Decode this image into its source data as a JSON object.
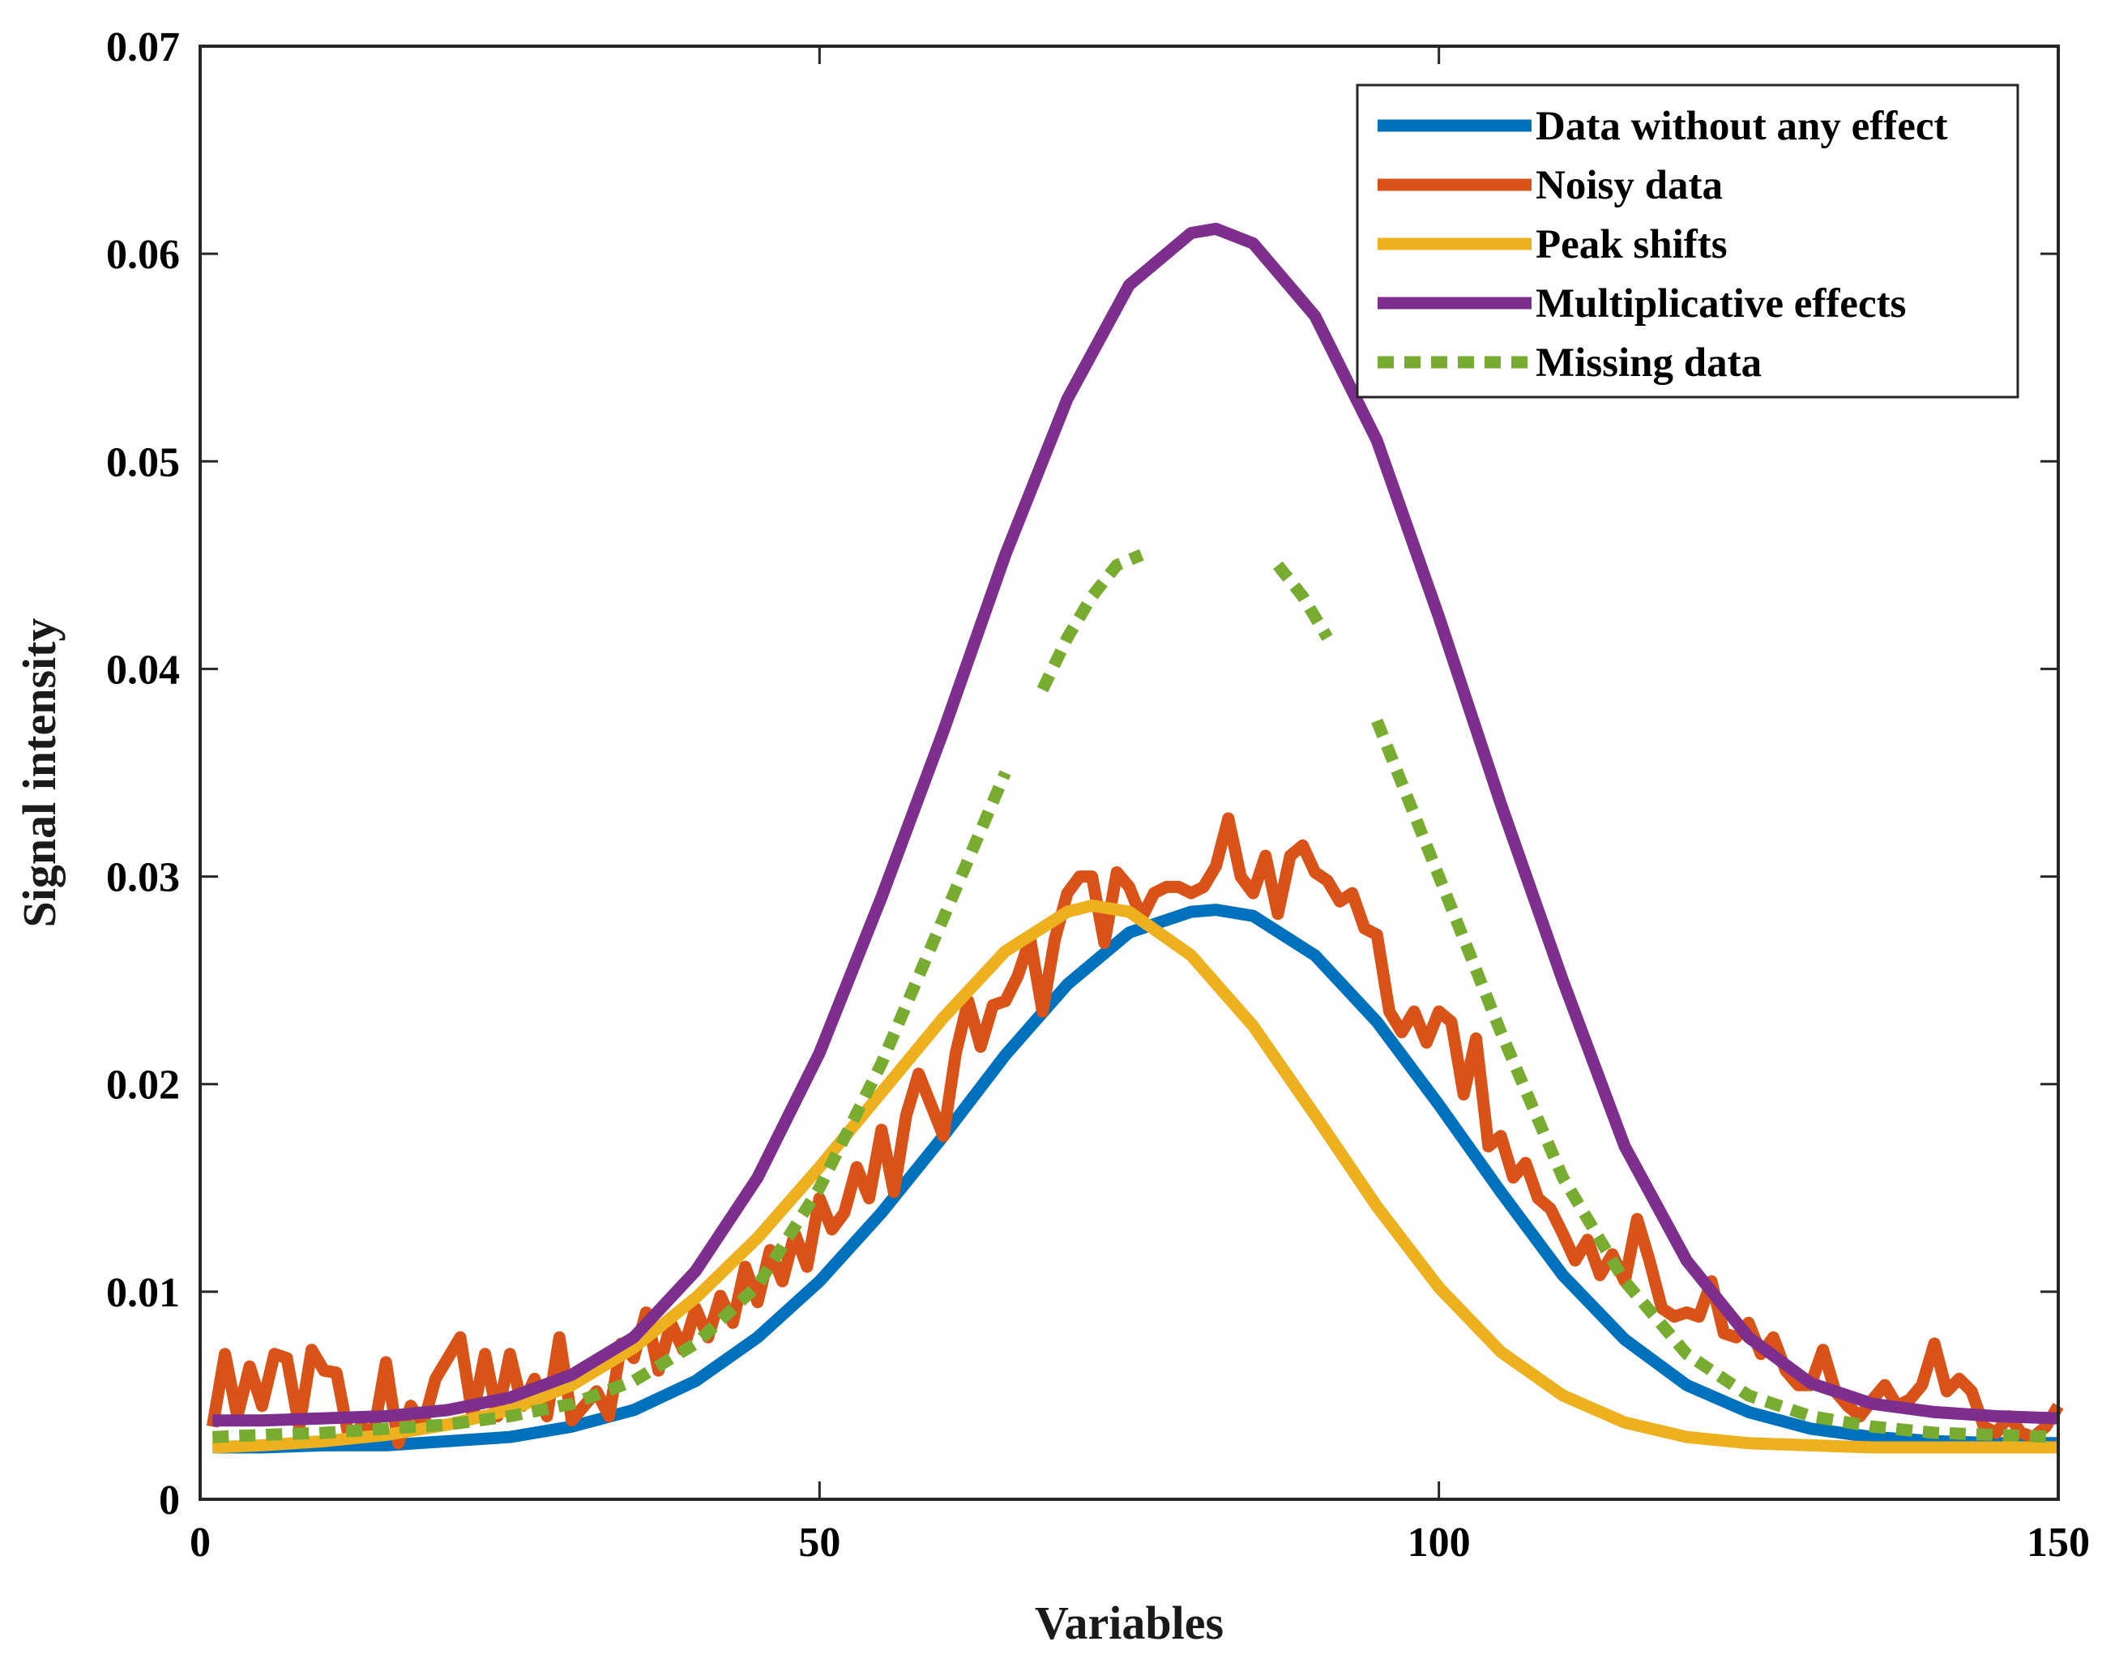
{
  "chart_data": {
    "type": "line",
    "title": "",
    "xlabel": "Variables",
    "ylabel": "Signal intensity",
    "xlim": [
      0,
      150
    ],
    "ylim": [
      0,
      0.07
    ],
    "xticks": [
      0,
      50,
      100,
      150
    ],
    "xtick_labels": [
      "0",
      "50",
      "100",
      "150"
    ],
    "yticks": [
      0,
      0.01,
      0.02,
      0.03,
      0.04,
      0.05,
      0.06,
      0.07
    ],
    "ytick_labels": [
      "0",
      "0.01",
      "0.02",
      "0.03",
      "0.04",
      "0.05",
      "0.06",
      "0.07"
    ],
    "grid": false,
    "legend_position": "top-right",
    "series": [
      {
        "name": "Data without any effect",
        "color": "#0072BD",
        "style": "solid",
        "x": [
          1,
          5,
          10,
          15,
          20,
          25,
          30,
          35,
          40,
          45,
          50,
          55,
          60,
          65,
          70,
          75,
          80,
          82,
          85,
          90,
          95,
          100,
          105,
          110,
          115,
          120,
          125,
          130,
          135,
          140,
          145,
          150
        ],
        "y": [
          0.0025,
          0.0025,
          0.0026,
          0.0026,
          0.0028,
          0.003,
          0.0035,
          0.0043,
          0.0057,
          0.0078,
          0.0105,
          0.0138,
          0.0175,
          0.0214,
          0.0248,
          0.0273,
          0.0283,
          0.0284,
          0.0281,
          0.0262,
          0.023,
          0.019,
          0.0148,
          0.0108,
          0.0077,
          0.0055,
          0.0042,
          0.0034,
          0.003,
          0.0028,
          0.0027,
          0.0027
        ]
      },
      {
        "name": "Noisy data",
        "color": "#D95319",
        "style": "solid",
        "x": [
          1,
          2,
          3,
          4,
          5,
          6,
          7,
          8,
          9,
          10,
          11,
          12,
          13,
          14,
          15,
          16,
          17,
          18,
          19,
          20,
          21,
          22,
          23,
          24,
          25,
          26,
          27,
          28,
          29,
          30,
          31,
          32,
          33,
          34,
          35,
          36,
          37,
          38,
          39,
          40,
          41,
          42,
          43,
          44,
          45,
          46,
          47,
          48,
          49,
          50,
          51,
          52,
          53,
          54,
          55,
          56,
          57,
          58,
          59,
          60,
          61,
          62,
          63,
          64,
          65,
          66,
          67,
          68,
          69,
          70,
          71,
          72,
          73,
          74,
          75,
          76,
          77,
          78,
          79,
          80,
          81,
          82,
          83,
          84,
          85,
          86,
          87,
          88,
          89,
          90,
          91,
          92,
          93,
          94,
          95,
          96,
          97,
          98,
          99,
          100,
          101,
          102,
          103,
          104,
          105,
          106,
          107,
          108,
          109,
          110,
          111,
          112,
          113,
          114,
          115,
          116,
          117,
          118,
          119,
          120,
          121,
          122,
          123,
          124,
          125,
          126,
          127,
          128,
          129,
          130,
          131,
          132,
          133,
          134,
          135,
          136,
          137,
          138,
          139,
          140,
          141,
          142,
          143,
          144,
          145,
          146,
          147,
          148,
          149,
          150
        ],
        "y": [
          0.0035,
          0.007,
          0.004,
          0.0064,
          0.0045,
          0.007,
          0.0068,
          0.0035,
          0.0072,
          0.0062,
          0.0061,
          0.003,
          0.0035,
          0.0032,
          0.0066,
          0.0027,
          0.0045,
          0.0036,
          0.0058,
          0.0068,
          0.0078,
          0.004,
          0.007,
          0.004,
          0.007,
          0.0045,
          0.0058,
          0.004,
          0.0078,
          0.0038,
          0.0045,
          0.0052,
          0.004,
          0.0075,
          0.0068,
          0.009,
          0.0062,
          0.0085,
          0.0072,
          0.0092,
          0.0078,
          0.0098,
          0.0085,
          0.0112,
          0.0095,
          0.012,
          0.0105,
          0.0128,
          0.0112,
          0.0145,
          0.013,
          0.0138,
          0.016,
          0.0145,
          0.0178,
          0.0148,
          0.0185,
          0.0205,
          0.019,
          0.0175,
          0.0215,
          0.024,
          0.0218,
          0.0238,
          0.024,
          0.0252,
          0.027,
          0.0235,
          0.027,
          0.0292,
          0.03,
          0.03,
          0.0268,
          0.0302,
          0.0295,
          0.028,
          0.0292,
          0.0295,
          0.0295,
          0.0292,
          0.0295,
          0.0305,
          0.0328,
          0.03,
          0.0292,
          0.031,
          0.0282,
          0.031,
          0.0315,
          0.0302,
          0.0298,
          0.0288,
          0.0292,
          0.0275,
          0.0272,
          0.0235,
          0.0225,
          0.0235,
          0.022,
          0.0235,
          0.023,
          0.0195,
          0.0222,
          0.017,
          0.0175,
          0.0155,
          0.0162,
          0.0145,
          0.014,
          0.0128,
          0.0115,
          0.0125,
          0.0108,
          0.0118,
          0.0105,
          0.0135,
          0.0115,
          0.0092,
          0.0088,
          0.009,
          0.0088,
          0.0105,
          0.008,
          0.0078,
          0.0085,
          0.007,
          0.0078,
          0.0062,
          0.0055,
          0.0055,
          0.0072,
          0.0052,
          0.0045,
          0.004,
          0.0048,
          0.0055,
          0.0045,
          0.0048,
          0.0055,
          0.0075,
          0.0052,
          0.0058,
          0.0052,
          0.0035,
          0.0032,
          0.004,
          0.0032,
          0.003,
          0.0035,
          0.0045
        ]
      },
      {
        "name": "Peak shifts",
        "color": "#EDB120",
        "style": "solid",
        "x": [
          1,
          5,
          10,
          15,
          20,
          25,
          30,
          35,
          40,
          45,
          50,
          55,
          60,
          65,
          70,
          72,
          75,
          80,
          85,
          90,
          95,
          100,
          105,
          110,
          115,
          120,
          125,
          130,
          135,
          140,
          145,
          150
        ],
        "y": [
          0.0025,
          0.0026,
          0.0028,
          0.0031,
          0.0036,
          0.0043,
          0.0055,
          0.0073,
          0.0097,
          0.0126,
          0.016,
          0.0196,
          0.0232,
          0.0264,
          0.0283,
          0.0286,
          0.0283,
          0.0262,
          0.0228,
          0.0185,
          0.0141,
          0.0102,
          0.0071,
          0.005,
          0.0037,
          0.003,
          0.0027,
          0.0026,
          0.0025,
          0.0025,
          0.0025,
          0.0025
        ]
      },
      {
        "name": "Multiplicative effects",
        "color": "#7E2F8E",
        "style": "solid",
        "x": [
          1,
          5,
          10,
          15,
          20,
          25,
          30,
          35,
          40,
          45,
          50,
          55,
          60,
          65,
          70,
          75,
          80,
          82,
          85,
          90,
          95,
          100,
          105,
          110,
          115,
          120,
          125,
          130,
          135,
          140,
          145,
          150
        ],
        "y": [
          0.0038,
          0.0038,
          0.0039,
          0.004,
          0.0043,
          0.0049,
          0.006,
          0.0078,
          0.011,
          0.0155,
          0.0215,
          0.029,
          0.037,
          0.0455,
          0.053,
          0.0585,
          0.061,
          0.0612,
          0.0605,
          0.057,
          0.051,
          0.0425,
          0.0335,
          0.025,
          0.017,
          0.0115,
          0.0078,
          0.0056,
          0.0046,
          0.0042,
          0.004,
          0.0039
        ]
      },
      {
        "name": "Missing data",
        "color": "#77AC30",
        "style": "dotted",
        "segments": [
          {
            "x": [
              1,
              5,
              10,
              15,
              20,
              25,
              30,
              35,
              40,
              45,
              50,
              55,
              60,
              65
            ],
            "y": [
              0.003,
              0.0031,
              0.0032,
              0.0034,
              0.0036,
              0.004,
              0.0046,
              0.0057,
              0.0075,
              0.0103,
              0.015,
              0.021,
              0.028,
              0.035
            ]
          },
          {
            "x": [
              68,
              70,
              72,
              74,
              76
            ],
            "y": [
              0.039,
              0.0415,
              0.0435,
              0.045,
              0.0455
            ]
          },
          {
            "x": [
              87,
              89,
              91
            ],
            "y": [
              0.045,
              0.0435,
              0.0415
            ]
          },
          {
            "x": [
              95,
              100,
              105,
              110,
              115,
              120,
              125,
              130,
              135,
              140,
              145,
              150
            ],
            "y": [
              0.0375,
              0.03,
              0.0225,
              0.0155,
              0.0105,
              0.007,
              0.005,
              0.004,
              0.0035,
              0.0032,
              0.0031,
              0.003
            ]
          }
        ]
      }
    ]
  }
}
